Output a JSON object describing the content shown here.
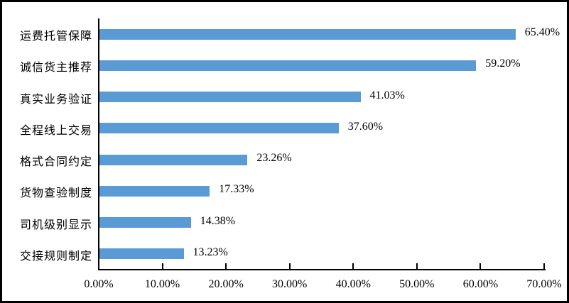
{
  "chart_data": {
    "type": "bar",
    "orientation": "horizontal",
    "title": "",
    "xlabel": "",
    "ylabel": "",
    "categories": [
      "运费托管保障",
      "诚信货主推荐",
      "真实业务验证",
      "全程线上交易",
      "格式合同约定",
      "货物查验制度",
      "司机级别显示",
      "交接规则制定"
    ],
    "values": [
      65.4,
      59.2,
      41.03,
      37.6,
      23.26,
      17.33,
      14.38,
      13.23
    ],
    "value_labels": [
      "65.40%",
      "59.20%",
      "41.03%",
      "37.60%",
      "23.26%",
      "17.33%",
      "14.38%",
      "13.23%"
    ],
    "x_ticks": [
      "0.00%",
      "10.00%",
      "20.00%",
      "30.00%",
      "40.00%",
      "50.00%",
      "60.00%",
      "70.00%"
    ],
    "x_tick_values": [
      0,
      10,
      20,
      30,
      40,
      50,
      60,
      70
    ],
    "xlim": [
      0,
      70
    ],
    "grid": "off",
    "legend_position": "none",
    "bar_color": "#5b9bd5",
    "axis_color": "#000000",
    "text_color": "#000000"
  }
}
